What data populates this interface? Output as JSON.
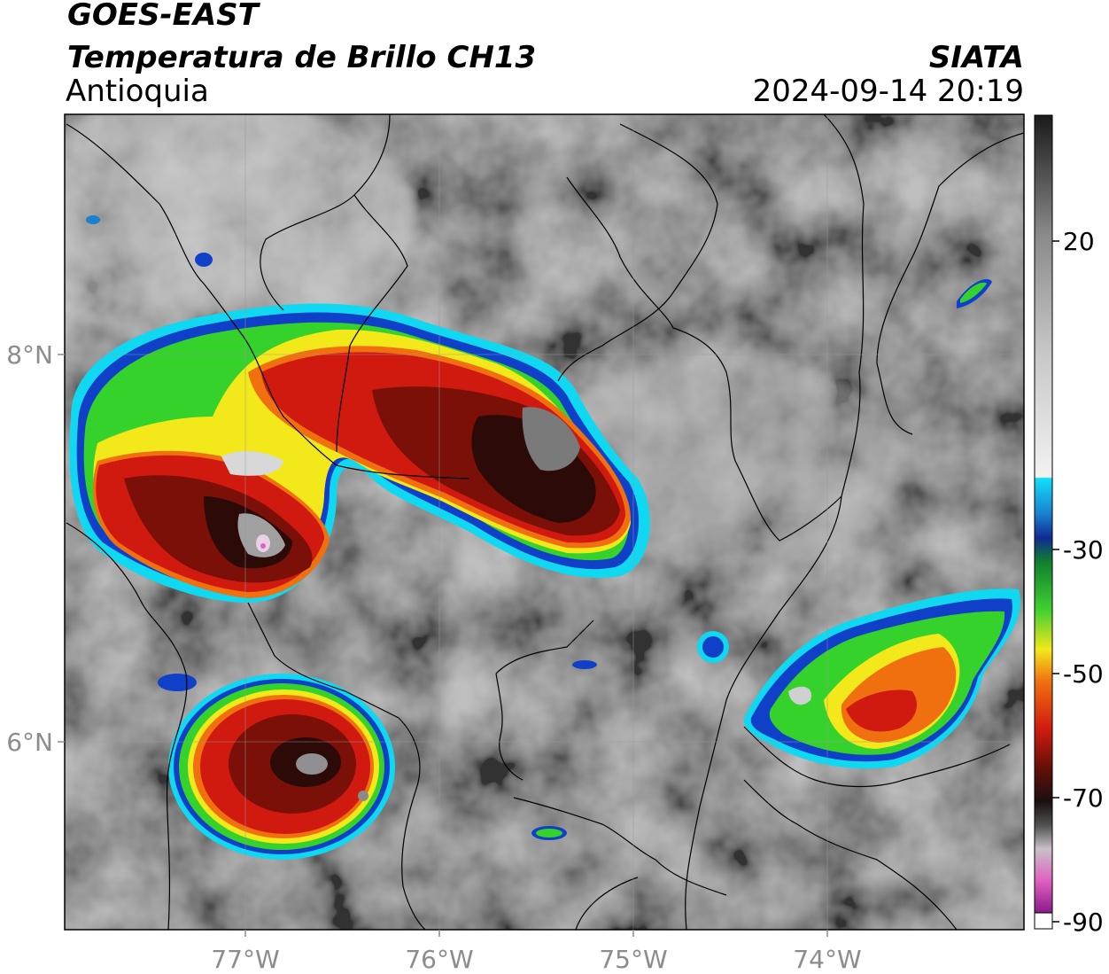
{
  "header": {
    "satellite": "GOES-EAST",
    "product": "Temperatura de Brillo CH13",
    "region": "Antioquia",
    "agency": "SIATA",
    "datetime": "2024-09-14 20:19"
  },
  "map": {
    "lon_ticks": [
      "77°W",
      "76°W",
      "75°W",
      "74°W"
    ],
    "lat_ticks": [
      "8°N",
      "6°N"
    ],
    "colors": {
      "background_gray": "#6e6e6e",
      "cold_red": "#c8190f",
      "dark_core": "#2b0a08",
      "green": "#35d22c",
      "yellow": "#f2e81a",
      "blue": "#1040c8",
      "cyan": "#10d8f0",
      "magenta": "#e060c0",
      "border_line": "#000000"
    }
  },
  "colorbar": {
    "ticks": [
      "20",
      "-30",
      "-50",
      "-70",
      "-90"
    ],
    "tick_values": [
      20,
      -30,
      -50,
      -70,
      -90
    ],
    "range": [
      -90,
      40
    ]
  }
}
